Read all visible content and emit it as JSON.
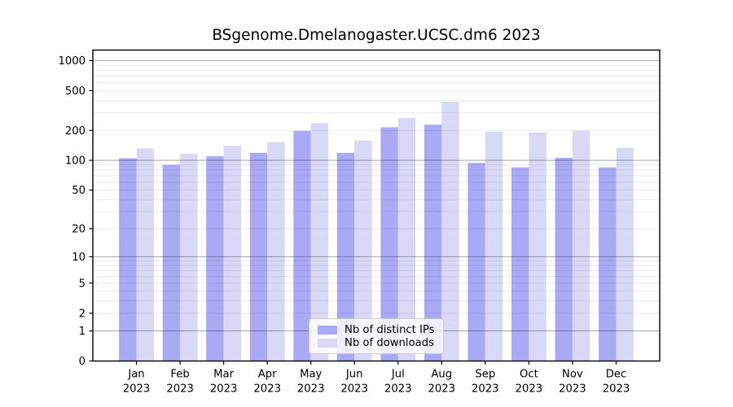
{
  "chart_data": {
    "type": "bar",
    "title": "BSgenome.Dmelanogaster.UCSC.dm6 2023",
    "categories": [
      "Jan",
      "Feb",
      "Mar",
      "Apr",
      "May",
      "Jun",
      "Jul",
      "Aug",
      "Sep",
      "Oct",
      "Nov",
      "Dec"
    ],
    "year_label": "2023",
    "series": [
      {
        "name": "Nb of distinct IPs",
        "color": "#a9a9f5",
        "values": [
          105,
          90,
          110,
          119,
          198,
          119,
          215,
          228,
          94,
          85,
          106,
          85
        ]
      },
      {
        "name": "Nb of downloads",
        "color": "#d9d9f7",
        "values": [
          132,
          117,
          141,
          153,
          236,
          158,
          266,
          388,
          194,
          190,
          199,
          134
        ]
      }
    ],
    "yticks": [
      0,
      1,
      2,
      5,
      10,
      20,
      50,
      100,
      200,
      500,
      1000
    ],
    "yscale": "log1p",
    "ylim": [
      0,
      1253
    ],
    "xlabel": "",
    "ylabel": "",
    "grid": "horizontal major (1,10,100,1000) and minor (2-9 per decade), drawn above bars",
    "legend_position": "lower center",
    "colors": {
      "major_grid": "rgba(0,0,0,0.35)",
      "minor_grid": "rgba(0,0,0,0.08)",
      "axes_frame": "#000000",
      "text": "#000000",
      "background": "#ffffff"
    }
  }
}
